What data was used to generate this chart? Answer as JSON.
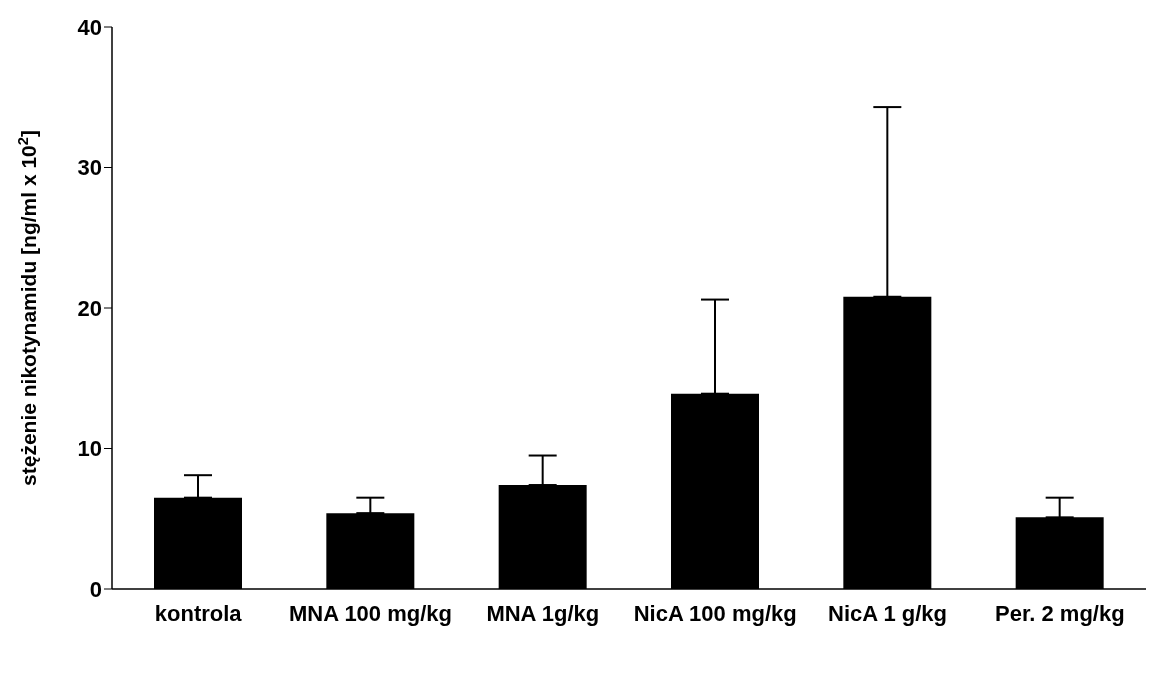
{
  "chart_data": {
    "type": "bar",
    "ylabel": "stężenie nikotynamidu [ng/ml x 10$^{2}$]",
    "categories": [
      "kontrola",
      "MNA 100 mg/kg",
      "MNA 1g/kg",
      "NicA 100 mg/kg",
      "NicA 1 g/kg",
      "Per. 2 mg/kg"
    ],
    "values": [
      6.5,
      5.4,
      7.4,
      13.9,
      20.8,
      5.1
    ],
    "errors": [
      [
        6.5,
        8.1
      ],
      [
        5.4,
        6.5
      ],
      [
        7.4,
        9.5
      ],
      [
        13.9,
        20.6
      ],
      [
        20.8,
        34.3
      ],
      [
        5.1,
        6.5
      ]
    ],
    "color": "#000000",
    "ylim": [
      0,
      40
    ],
    "yticks": [
      0,
      10,
      20,
      30,
      40
    ],
    "grid": false
  }
}
